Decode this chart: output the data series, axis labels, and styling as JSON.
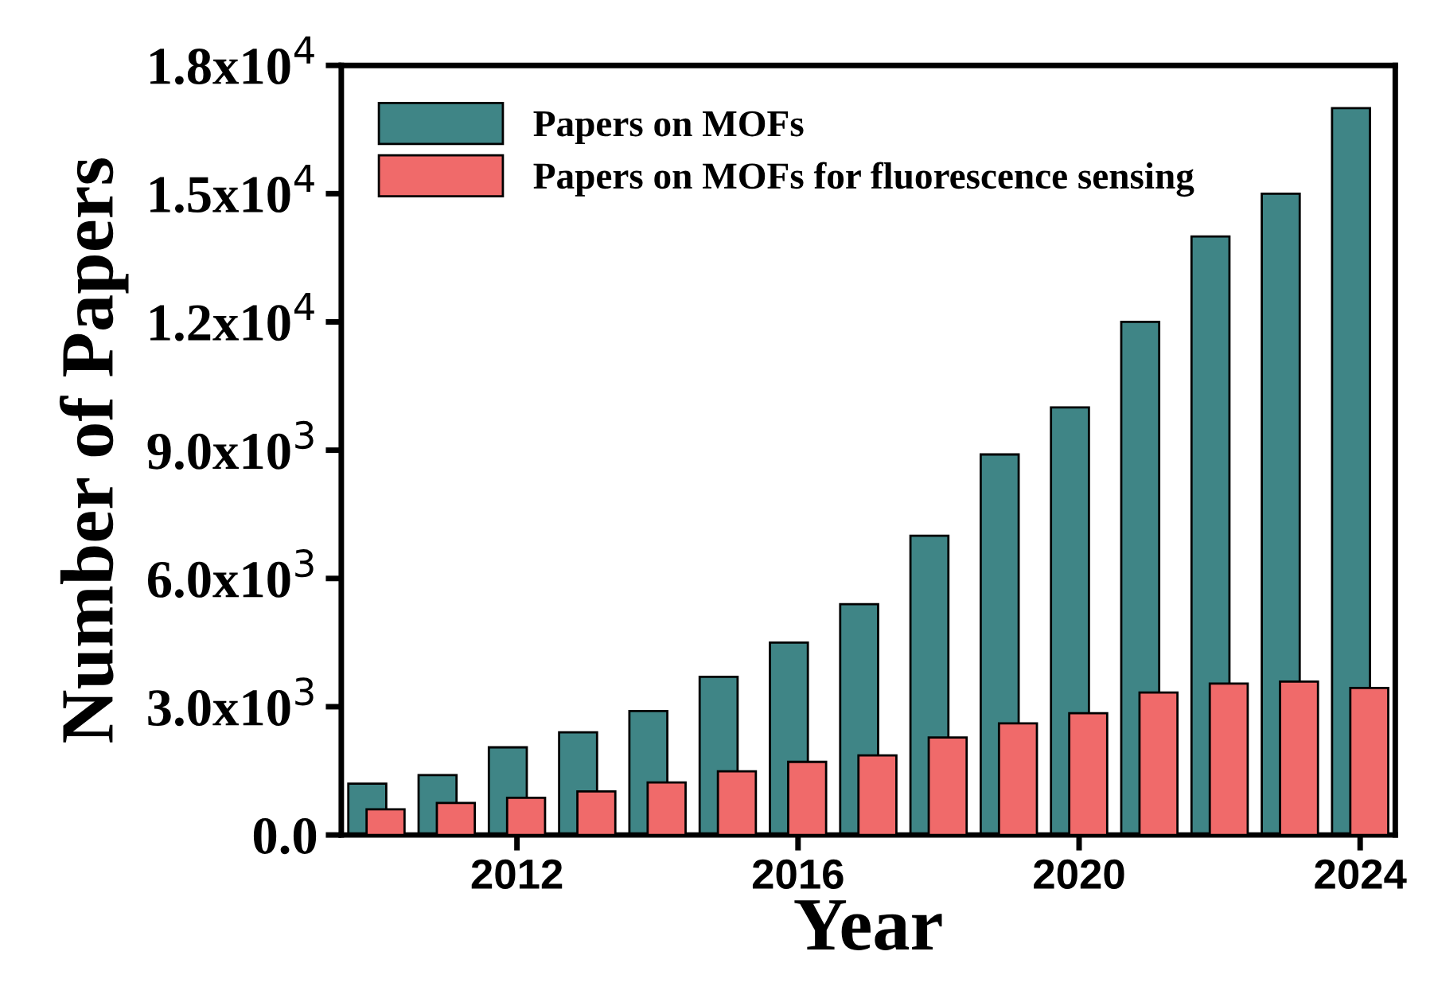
{
  "chart_data": {
    "type": "bar",
    "xlabel": "Year",
    "ylabel": "Number of Papers",
    "x": [
      2010,
      2011,
      2012,
      2013,
      2014,
      2015,
      2016,
      2017,
      2018,
      2019,
      2020,
      2021,
      2022,
      2023,
      2024
    ],
    "series": [
      {
        "name": "Papers on MOFs",
        "color": "#3f8586",
        "values": [
          1200,
          1400,
          2050,
          2400,
          2900,
          3700,
          4500,
          5400,
          7000,
          8900,
          10000,
          12000,
          14000,
          15000,
          17000
        ]
      },
      {
        "name": "Papers on MOFs for fluorescence sensing",
        "color": "#f06a6a",
        "values": [
          600,
          750,
          870,
          1020,
          1230,
          1490,
          1710,
          1860,
          2280,
          2610,
          2850,
          3330,
          3540,
          3590,
          3440
        ]
      }
    ],
    "xlim": [
      2009.5,
      2024.5
    ],
    "xticks": [
      2012,
      2016,
      2020,
      2024
    ],
    "ylim": [
      0,
      18000
    ],
    "yticks": [
      {
        "value": 0,
        "label": "0.0"
      },
      {
        "value": 3000,
        "label": "3.0x10$^{3}$"
      },
      {
        "value": 6000,
        "label": "6.0x10$^{3}$"
      },
      {
        "value": 9000,
        "label": "9.0x10$^{3}$"
      },
      {
        "value": 12000,
        "label": "1.2x10$^{4}$"
      },
      {
        "value": 15000,
        "label": "1.5x10$^{4}$"
      },
      {
        "value": 18000,
        "label": "1.8x10$^{4}$"
      }
    ],
    "legend": "top left",
    "grid": false
  }
}
